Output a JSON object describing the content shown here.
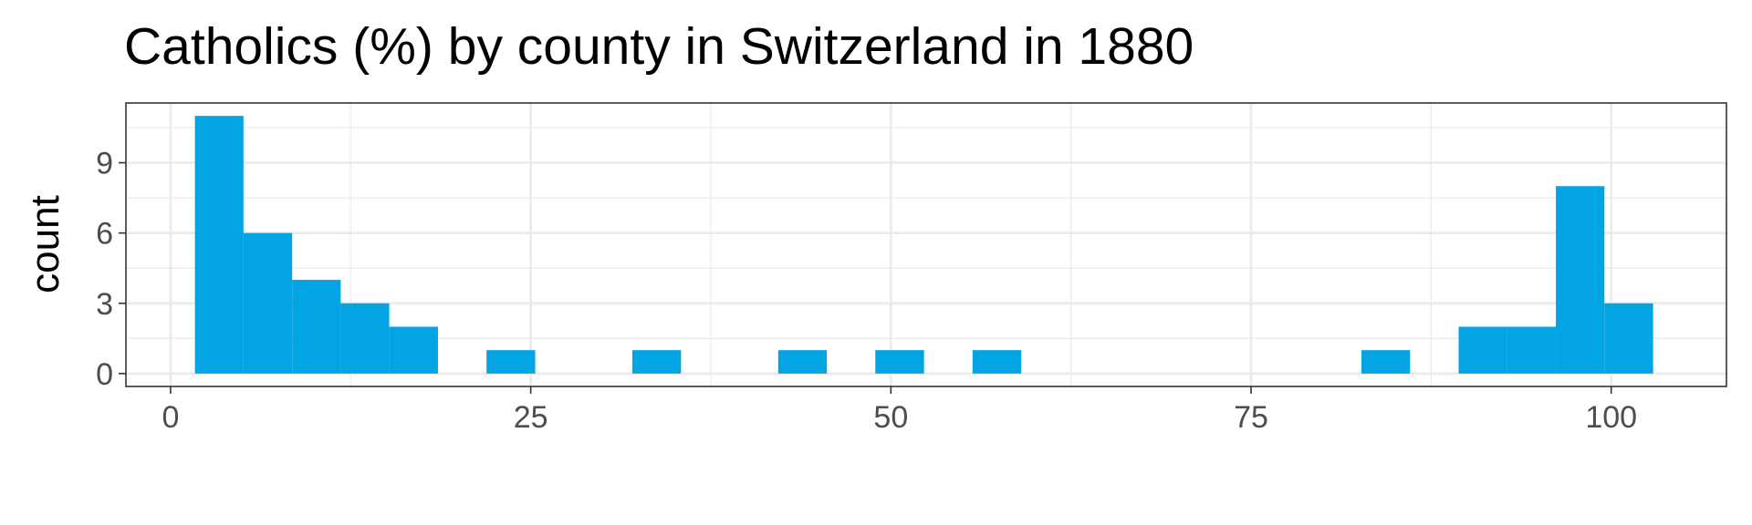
{
  "chart_data": {
    "type": "histogram",
    "title": "Catholics (%) by county in Switzerland in 1880",
    "y_label": "count",
    "bins": [
      1.69,
      5.06,
      8.44,
      11.81,
      15.18,
      18.56,
      21.93,
      25.31,
      28.68,
      32.05,
      35.43,
      38.8,
      42.18,
      45.55,
      48.92,
      52.3,
      55.67,
      59.05,
      62.42,
      65.79,
      69.17,
      72.54,
      75.92,
      79.29,
      82.66,
      86.04,
      89.41,
      92.79,
      96.16,
      99.53,
      102.91
    ],
    "values": [
      11,
      6,
      4,
      3,
      2,
      0,
      1,
      0,
      0,
      1,
      0,
      0,
      1,
      0,
      1,
      0,
      1,
      0,
      0,
      0,
      0,
      0,
      0,
      0,
      1,
      0,
      2,
      2,
      8,
      3
    ],
    "color": "#02a4e3",
    "xlim": [
      -3.1,
      108
    ],
    "xticks": [
      0,
      25,
      50,
      75,
      100
    ],
    "minor_xticks": [
      12.5,
      37.5,
      62.5,
      87.5
    ],
    "ylim": [
      -0.55,
      11.55
    ],
    "yticks": [
      0,
      3,
      6,
      9
    ],
    "minor_yticks": [
      1.5,
      4.5,
      7.5,
      10.5
    ],
    "grid": true
  }
}
